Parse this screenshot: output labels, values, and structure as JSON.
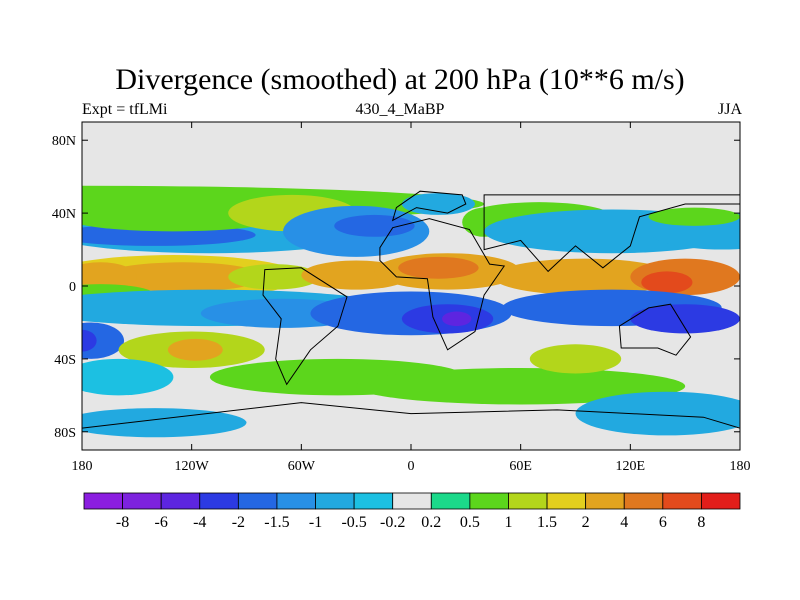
{
  "title": "Divergence (smoothed) at 200 hPa (10**6 m/s)",
  "subtitle_left": "Expt = tfLMi",
  "subtitle_center": "430_4_MaBP",
  "subtitle_right": "JJA",
  "map": {
    "lon_range": [
      -180,
      180
    ],
    "lat_range": [
      -90,
      90
    ],
    "background_color": "#e6e6e6",
    "x_ticks": [
      {
        "value": -180,
        "label": "180"
      },
      {
        "value": -120,
        "label": "120W"
      },
      {
        "value": -60,
        "label": "60W"
      },
      {
        "value": 0,
        "label": "0"
      },
      {
        "value": 60,
        "label": "60E"
      },
      {
        "value": 120,
        "label": "120E"
      },
      {
        "value": 180,
        "label": "180"
      }
    ],
    "y_ticks": [
      {
        "value": 80,
        "label": "80N"
      },
      {
        "value": 40,
        "label": "40N"
      },
      {
        "value": 0,
        "label": "0"
      },
      {
        "value": -40,
        "label": "40S"
      },
      {
        "value": -80,
        "label": "80S"
      }
    ],
    "blobs": [
      {
        "lon": -180,
        "lat": 45,
        "rlon": 220,
        "rlat": 10,
        "level": 0.5
      },
      {
        "lon": -110,
        "lat": 30,
        "rlon": 90,
        "rlat": 12,
        "level": -1
      },
      {
        "lon": -140,
        "lat": 28,
        "rlon": 55,
        "rlat": 6,
        "level": -2
      },
      {
        "lon": -130,
        "lat": 38,
        "rlon": 60,
        "rlat": 8,
        "level": 0.5
      },
      {
        "lon": -65,
        "lat": 40,
        "rlon": 35,
        "rlat": 10,
        "level": 1
      },
      {
        "lon": -30,
        "lat": 30,
        "rlon": 40,
        "rlat": 14,
        "level": -1.5
      },
      {
        "lon": -20,
        "lat": 33,
        "rlon": 22,
        "rlat": 6,
        "level": -2
      },
      {
        "lon": 15,
        "lat": 45,
        "rlon": 20,
        "rlat": 6,
        "level": -1
      },
      {
        "lon": 40,
        "lat": 35,
        "rlon": 12,
        "rlat": 8,
        "level": 0.5
      },
      {
        "lon": 70,
        "lat": 38,
        "rlon": 40,
        "rlat": 8,
        "level": 0.5
      },
      {
        "lon": 110,
        "lat": 30,
        "rlon": 70,
        "rlat": 12,
        "level": -1
      },
      {
        "lon": 170,
        "lat": 30,
        "rlon": 40,
        "rlat": 10,
        "level": -1
      },
      {
        "lon": 155,
        "lat": 38,
        "rlon": 25,
        "rlat": 5,
        "level": 0.5
      },
      {
        "lon": -130,
        "lat": 5,
        "rlon": 70,
        "rlat": 12,
        "level": 1.5
      },
      {
        "lon": -125,
        "lat": 5,
        "rlon": 45,
        "rlat": 8,
        "level": 2
      },
      {
        "lon": -170,
        "lat": 5,
        "rlon": 20,
        "rlat": 8,
        "level": 2
      },
      {
        "lon": -75,
        "lat": 5,
        "rlon": 25,
        "rlat": 7,
        "level": 1
      },
      {
        "lon": -30,
        "lat": 6,
        "rlon": 30,
        "rlat": 8,
        "level": 2
      },
      {
        "lon": 20,
        "lat": 8,
        "rlon": 40,
        "rlat": 10,
        "level": 2
      },
      {
        "lon": 15,
        "lat": 10,
        "rlon": 22,
        "rlat": 6,
        "level": 4
      },
      {
        "lon": 95,
        "lat": 5,
        "rlon": 50,
        "rlat": 10,
        "level": 2
      },
      {
        "lon": 150,
        "lat": 5,
        "rlon": 30,
        "rlat": 10,
        "level": 4
      },
      {
        "lon": 140,
        "lat": 2,
        "rlon": 14,
        "rlat": 6,
        "level": 6
      },
      {
        "lon": -170,
        "lat": -5,
        "rlon": 30,
        "rlat": 6,
        "level": 0.5
      },
      {
        "lon": -110,
        "lat": -12,
        "rlon": 100,
        "rlat": 10,
        "level": -1
      },
      {
        "lon": -70,
        "lat": -15,
        "rlon": 45,
        "rlat": 8,
        "level": -1.5
      },
      {
        "lon": 0,
        "lat": -15,
        "rlon": 55,
        "rlat": 12,
        "level": -2
      },
      {
        "lon": 20,
        "lat": -18,
        "rlon": 25,
        "rlat": 8,
        "level": -4
      },
      {
        "lon": 25,
        "lat": -18,
        "rlon": 8,
        "rlat": 4,
        "level": -6
      },
      {
        "lon": 110,
        "lat": -12,
        "rlon": 60,
        "rlat": 10,
        "level": -2
      },
      {
        "lon": 150,
        "lat": -18,
        "rlon": 30,
        "rlat": 8,
        "level": -4
      },
      {
        "lon": -175,
        "lat": -30,
        "rlon": 18,
        "rlat": 10,
        "level": -2
      },
      {
        "lon": -180,
        "lat": -30,
        "rlon": 8,
        "rlat": 6,
        "level": -4
      },
      {
        "lon": -120,
        "lat": -35,
        "rlon": 40,
        "rlat": 10,
        "level": 1
      },
      {
        "lon": -118,
        "lat": -35,
        "rlon": 15,
        "rlat": 6,
        "level": 2
      },
      {
        "lon": -160,
        "lat": -50,
        "rlon": 30,
        "rlat": 10,
        "level": -0.5
      },
      {
        "lon": -140,
        "lat": -75,
        "rlon": 50,
        "rlat": 8,
        "level": -1
      },
      {
        "lon": -40,
        "lat": -50,
        "rlon": 70,
        "rlat": 10,
        "level": 0.5
      },
      {
        "lon": 60,
        "lat": -55,
        "rlon": 90,
        "rlat": 10,
        "level": 0.5
      },
      {
        "lon": 90,
        "lat": -40,
        "rlon": 25,
        "rlat": 8,
        "level": 1
      },
      {
        "lon": 140,
        "lat": -70,
        "rlon": 50,
        "rlat": 12,
        "level": -1
      }
    ],
    "land": [
      {
        "name": "africa",
        "points": [
          [
            -17,
            21
          ],
          [
            -10,
            32
          ],
          [
            10,
            37
          ],
          [
            32,
            31
          ],
          [
            43,
            12
          ],
          [
            51,
            11
          ],
          [
            40,
            -5
          ],
          [
            35,
            -25
          ],
          [
            20,
            -35
          ],
          [
            12,
            -17
          ],
          [
            9,
            4
          ],
          [
            -8,
            5
          ],
          [
            -17,
            14
          ]
        ]
      },
      {
        "name": "south-america",
        "points": [
          [
            -80,
            9
          ],
          [
            -60,
            10
          ],
          [
            -35,
            -6
          ],
          [
            -40,
            -22
          ],
          [
            -55,
            -35
          ],
          [
            -68,
            -54
          ],
          [
            -74,
            -40
          ],
          [
            -71,
            -18
          ],
          [
            -81,
            -5
          ]
        ]
      },
      {
        "name": "australia",
        "points": [
          [
            114,
            -22
          ],
          [
            130,
            -12
          ],
          [
            142,
            -10
          ],
          [
            153,
            -28
          ],
          [
            145,
            -38
          ],
          [
            135,
            -34
          ],
          [
            115,
            -34
          ]
        ]
      },
      {
        "name": "antarctica",
        "points": [
          [
            -180,
            -78
          ],
          [
            -60,
            -64
          ],
          [
            0,
            -70
          ],
          [
            80,
            -68
          ],
          [
            160,
            -72
          ],
          [
            180,
            -78
          ],
          [
            180,
            -90
          ],
          [
            -180,
            -90
          ]
        ]
      },
      {
        "name": "europe",
        "points": [
          [
            -10,
            36
          ],
          [
            3,
            43
          ],
          [
            20,
            40
          ],
          [
            30,
            45
          ],
          [
            28,
            50
          ],
          [
            5,
            52
          ],
          [
            -8,
            43
          ]
        ]
      },
      {
        "name": "asia",
        "points": [
          [
            40,
            20
          ],
          [
            60,
            25
          ],
          [
            75,
            8
          ],
          [
            90,
            22
          ],
          [
            105,
            10
          ],
          [
            120,
            22
          ],
          [
            125,
            38
          ],
          [
            150,
            45
          ],
          [
            180,
            45
          ],
          [
            180,
            50
          ],
          [
            40,
            50
          ]
        ]
      }
    ]
  },
  "colorbar": {
    "colors": [
      "#8b1ee0",
      "#7d22de",
      "#5d25e0",
      "#2c3ae3",
      "#2467e3",
      "#2890e6",
      "#22a9e0",
      "#1cc0e2",
      "#e6e6e6",
      "#1bd98a",
      "#5cd61c",
      "#b3d61b",
      "#e3cf1e",
      "#e2a41f",
      "#e0781f",
      "#e34a1c",
      "#e21e1a"
    ],
    "labels": [
      "-8",
      "-6",
      "-4",
      "-2",
      "-1.5",
      "-1",
      "-0.5",
      "-0.2",
      "0.2",
      "0.5",
      "1",
      "1.5",
      "2",
      "4",
      "6",
      "8"
    ]
  }
}
